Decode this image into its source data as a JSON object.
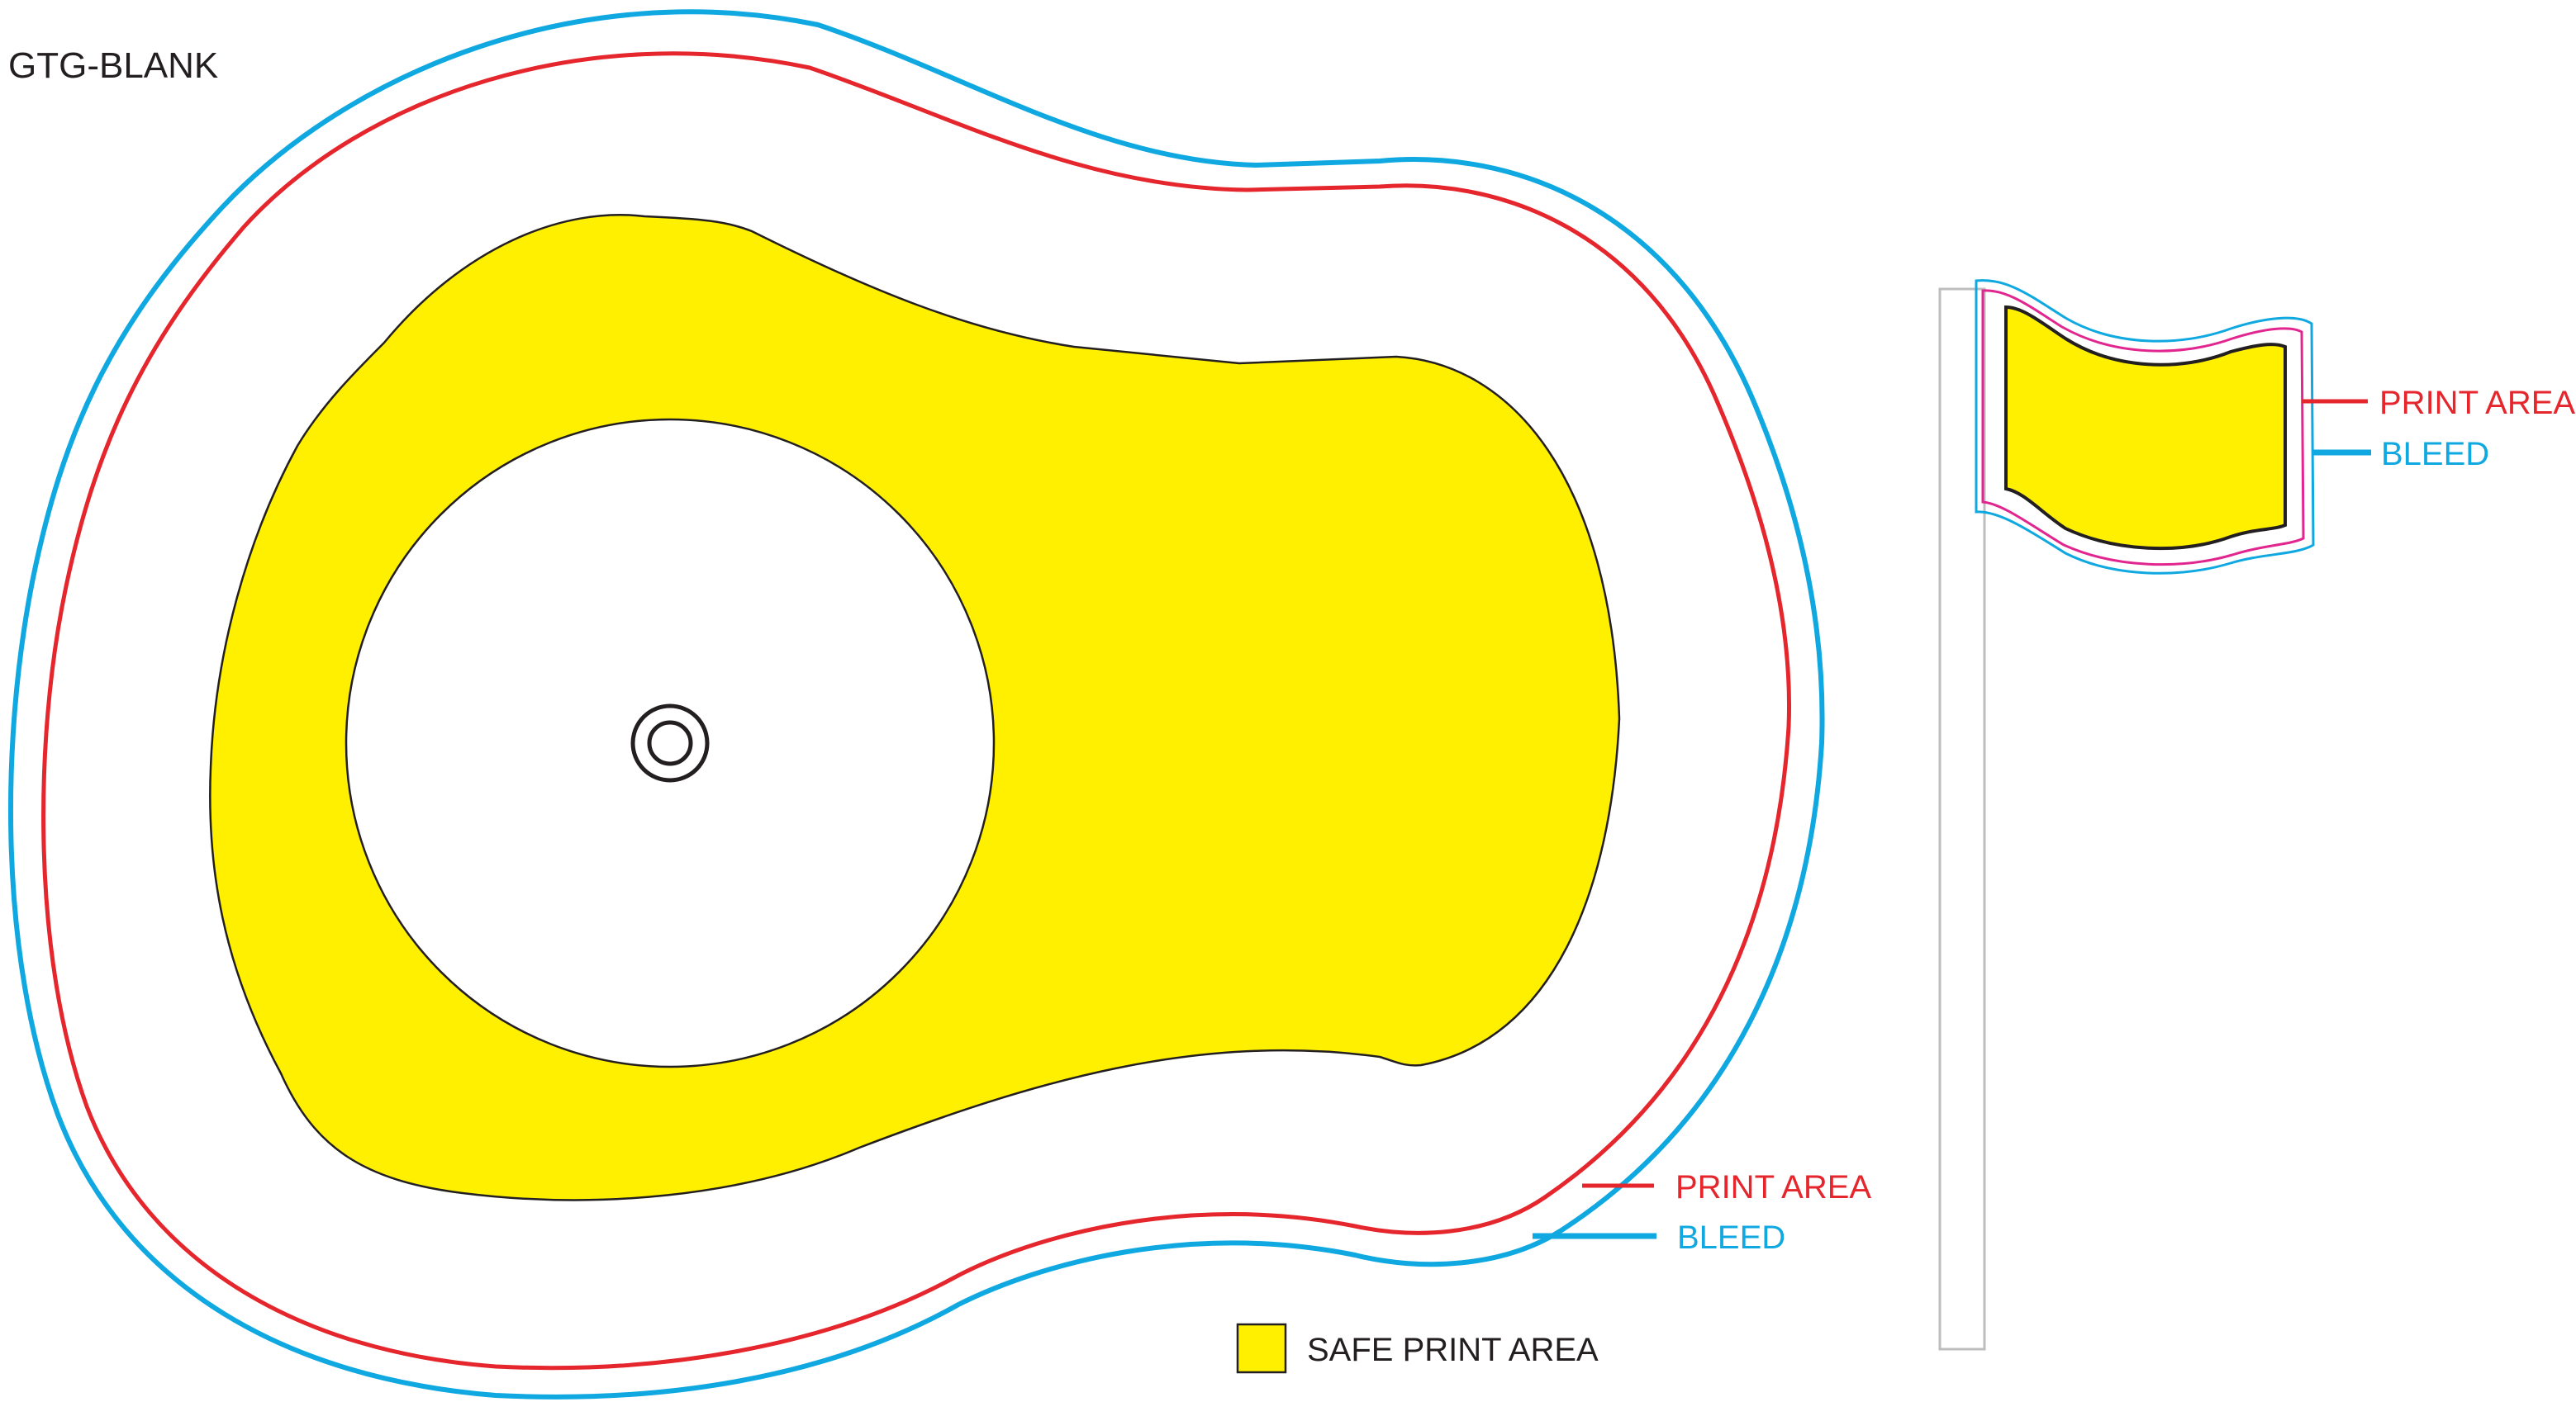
{
  "title": "GTG-BLANK",
  "colors": {
    "print_area": "#e5262c",
    "bleed": "#10a8e0",
    "flag_print_area": "#e2268f",
    "safe_fill": "#fff000",
    "outline": "#231f20",
    "pole": "#bdbdbd"
  },
  "main_template": {
    "print_area_label": "PRINT AREA",
    "bleed_label": "BLEED"
  },
  "flag_template": {
    "print_area_label": "PRINT AREA",
    "bleed_label": "BLEED"
  },
  "legend": {
    "label": "SAFE PRINT AREA"
  }
}
